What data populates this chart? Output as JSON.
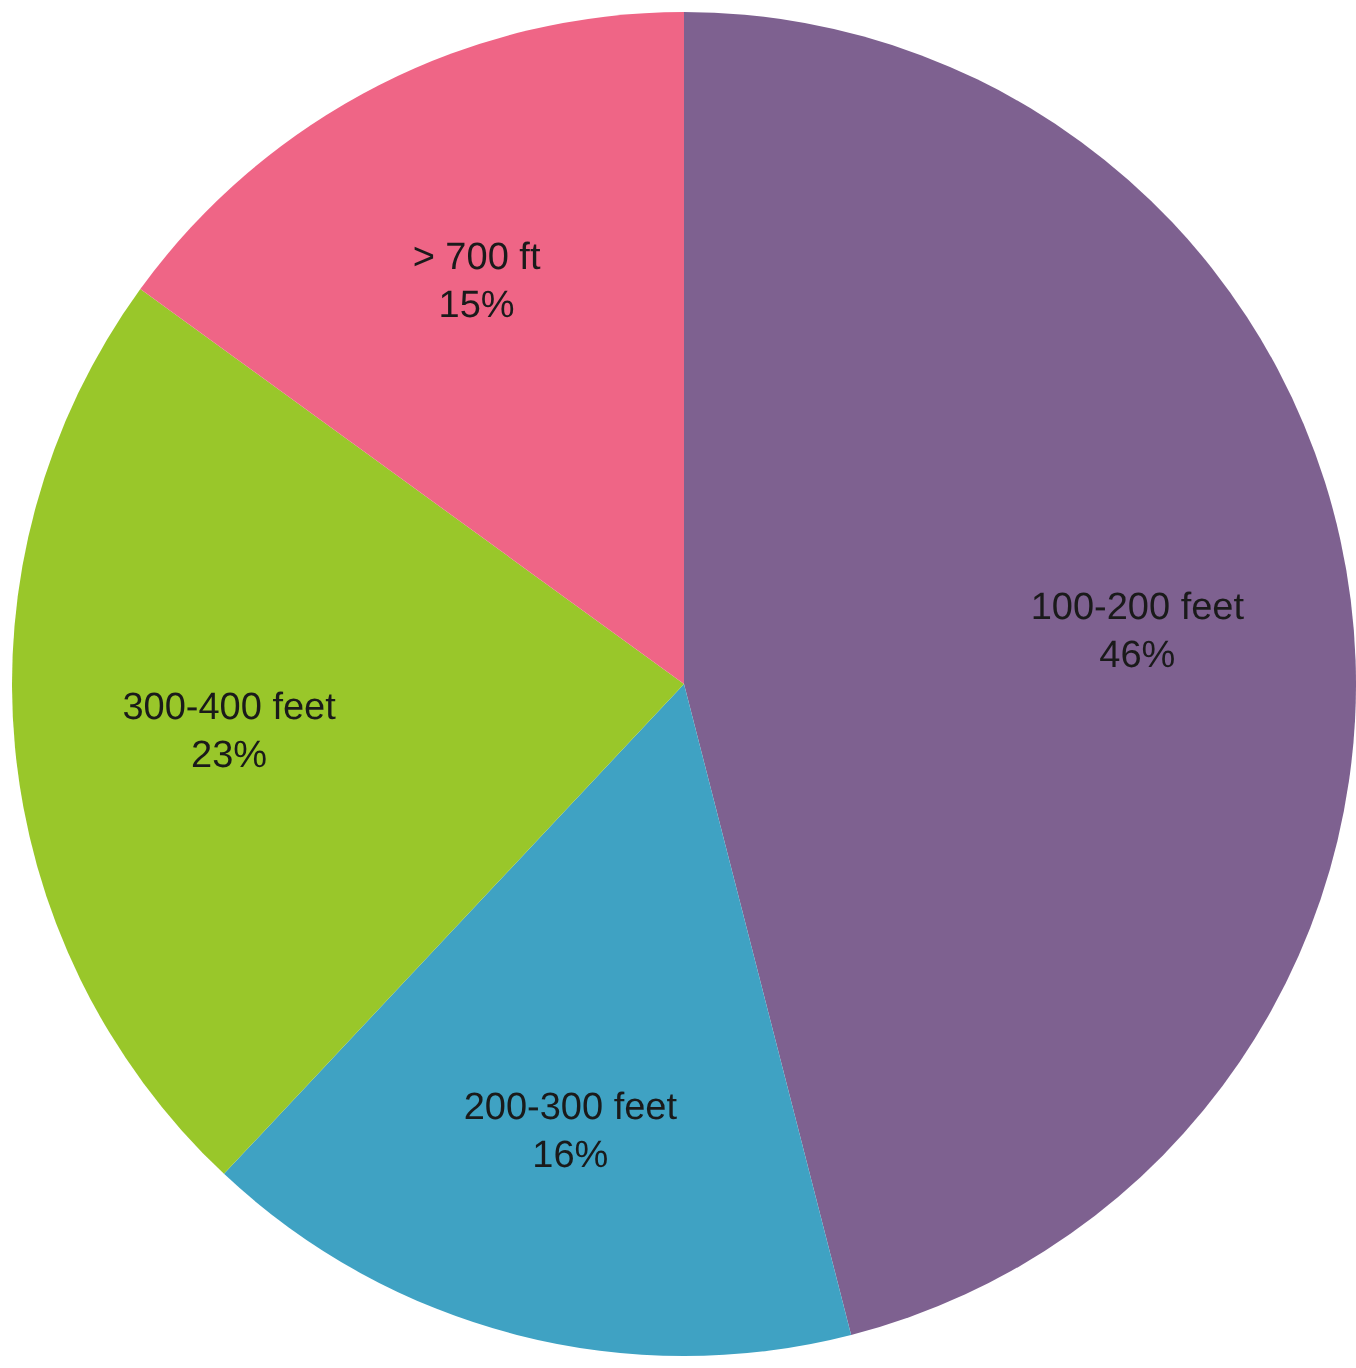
{
  "chart_data": {
    "type": "pie",
    "categories": [
      "100-200 feet",
      "200-300 feet",
      "300-400 feet",
      "> 700 ft"
    ],
    "values": [
      46,
      16,
      23,
      15
    ],
    "value_labels": [
      "46%",
      "16%",
      "23%",
      "15%"
    ],
    "colors": [
      "#7e6190",
      "#3fa2c3",
      "#99c72a",
      "#ef6586"
    ],
    "legend": false
  }
}
